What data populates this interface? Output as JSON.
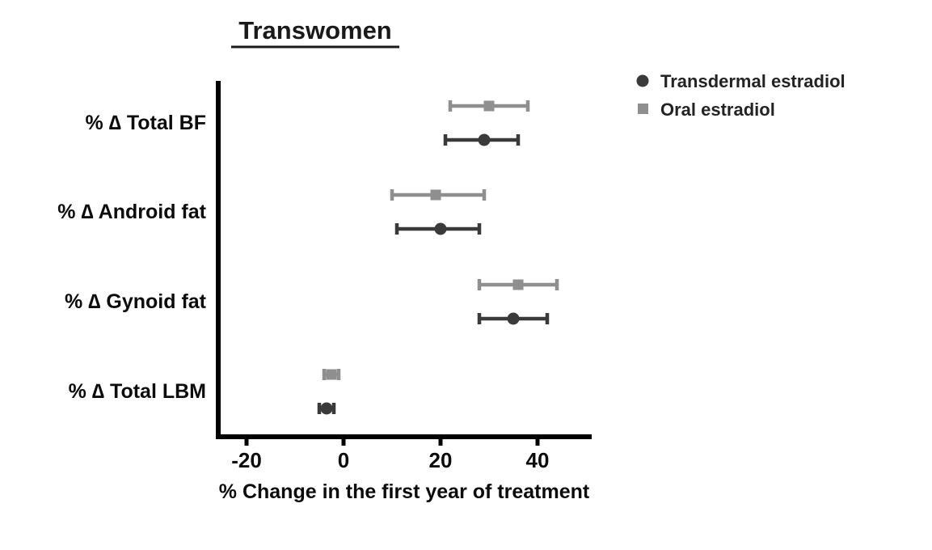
{
  "chart_data": {
    "type": "scatter",
    "title": "Transwomen",
    "xlabel": "% Change in the first year of treatment",
    "xlim": [
      -27,
      51
    ],
    "xticks": [
      -20,
      0,
      20,
      40
    ],
    "grid": false,
    "legend_position": "top-right",
    "categories": [
      "% ∆ Total BF",
      "% ∆ Android fat",
      "% ∆ Gynoid fat",
      "% ∆ Total LBM"
    ],
    "series": [
      {
        "name": "Transdermal estradiol",
        "marker": "circle",
        "color": "#3a3a3a",
        "values": [
          29,
          20,
          35,
          -3.5
        ],
        "ci_low": [
          21,
          11,
          28,
          -5
        ],
        "ci_high": [
          36,
          28,
          42,
          -2
        ]
      },
      {
        "name": "Oral estradiol",
        "marker": "square",
        "color": "#8f8f8f",
        "values": [
          30,
          19,
          36,
          -2.5
        ],
        "ci_low": [
          22,
          10,
          28,
          -4
        ],
        "ci_high": [
          38,
          29,
          44,
          -1
        ]
      }
    ]
  }
}
